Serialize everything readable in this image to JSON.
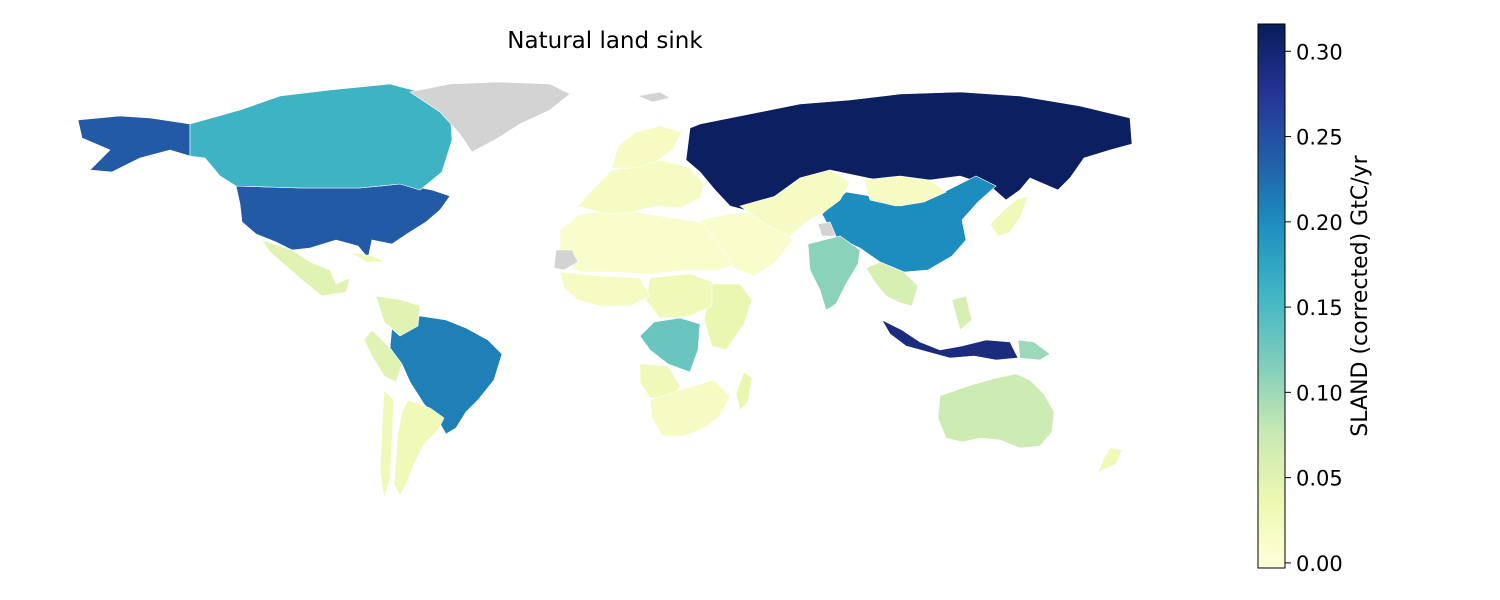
{
  "map": {
    "title": "Natural land sink",
    "no_data_color": "#d3d3d3",
    "regions": [
      {
        "name": "Russia",
        "value": 0.31
      },
      {
        "name": "United States",
        "value": 0.24
      },
      {
        "name": "Alaska",
        "value": 0.24
      },
      {
        "name": "Indonesia",
        "value": 0.29
      },
      {
        "name": "Brazil",
        "value": 0.21
      },
      {
        "name": "China",
        "value": 0.2
      },
      {
        "name": "Canada",
        "value": 0.16
      },
      {
        "name": "DR Congo",
        "value": 0.13
      },
      {
        "name": "India",
        "value": 0.11
      },
      {
        "name": "Papua New Guinea",
        "value": 0.1
      },
      {
        "name": "Australia",
        "value": 0.07
      },
      {
        "name": "Mexico",
        "value": 0.05
      },
      {
        "name": "Southeast Asia",
        "value": 0.06
      },
      {
        "name": "Colombia",
        "value": 0.05
      },
      {
        "name": "Peru",
        "value": 0.05
      },
      {
        "name": "Argentina",
        "value": 0.03
      },
      {
        "name": "Chile",
        "value": 0.03
      },
      {
        "name": "Madagascar",
        "value": 0.04
      },
      {
        "name": "East Africa",
        "value": 0.04
      },
      {
        "name": "Angola",
        "value": 0.03
      },
      {
        "name": "Southern Africa",
        "value": 0.02
      },
      {
        "name": "Central Africa",
        "value": 0.03
      },
      {
        "name": "West Africa",
        "value": 0.02
      },
      {
        "name": "North Africa",
        "value": 0.01
      },
      {
        "name": "Middle East",
        "value": 0.01
      },
      {
        "name": "Central Asia",
        "value": 0.02
      },
      {
        "name": "Mongolia",
        "value": 0.02
      },
      {
        "name": "Japan",
        "value": 0.03
      },
      {
        "name": "Europe",
        "value": 0.02
      },
      {
        "name": "Scandinavia",
        "value": 0.02
      },
      {
        "name": "New Zealand",
        "value": 0.03
      },
      {
        "name": "Cuba",
        "value": 0.03
      },
      {
        "name": "Greenland",
        "value": null
      },
      {
        "name": "Western Sahara",
        "value": null
      },
      {
        "name": "Svalbard",
        "value": null
      },
      {
        "name": "Kashmir",
        "value": null
      }
    ]
  },
  "colorbar": {
    "label": "SLAND (corrected) GtC/yr",
    "min": -0.003,
    "max": 0.316,
    "ticks": [
      0.0,
      0.05,
      0.1,
      0.15,
      0.2,
      0.25,
      0.3
    ],
    "tick_labels": [
      "0.00",
      "0.05",
      "0.10",
      "0.15",
      "0.20",
      "0.25",
      "0.30"
    ],
    "colormap": [
      "#ffffd9",
      "#edf8b1",
      "#c7e9b4",
      "#7fcdbb",
      "#41b6c4",
      "#1d91c0",
      "#225ea8",
      "#253494",
      "#081d58"
    ]
  }
}
